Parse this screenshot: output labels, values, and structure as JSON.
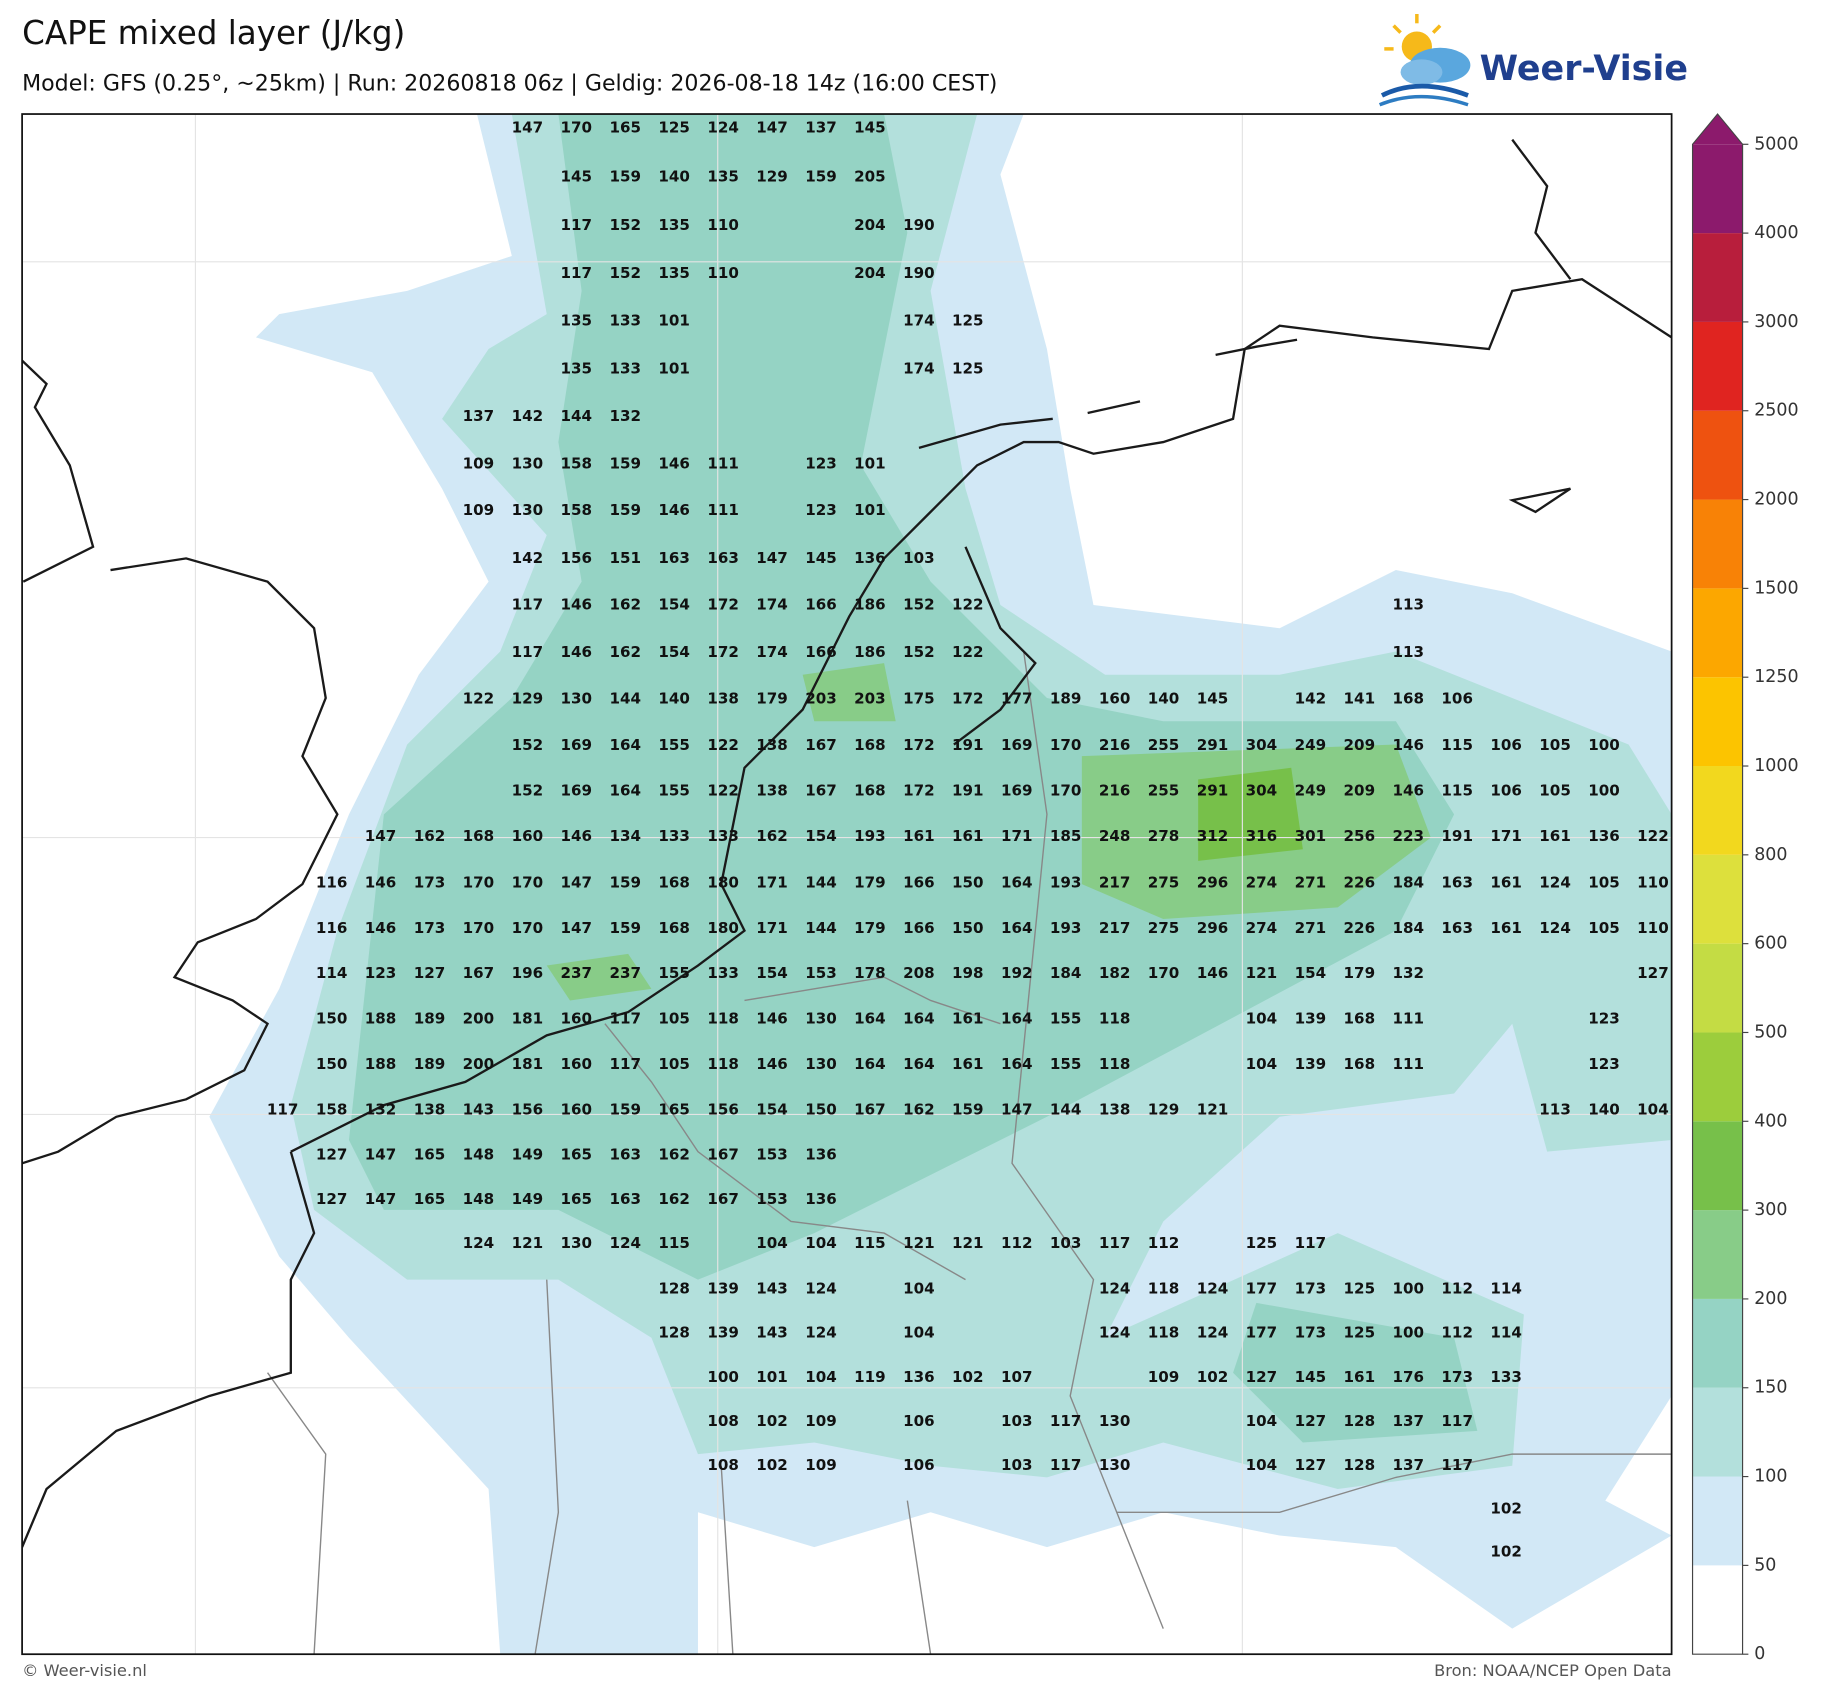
{
  "header": {
    "title": "CAPE mixed layer (J/kg)",
    "subtitle": "Model: GFS (0.25°, ~25km)  |  Run: 20260818 06z  |  Geldig: 2026-08-18 14z (16:00 CEST)",
    "logo": "Weer-Visie"
  },
  "colorbar": {
    "ticks": [
      0,
      50,
      100,
      150,
      200,
      300,
      400,
      500,
      600,
      800,
      1000,
      1250,
      1500,
      2000,
      2500,
      3000,
      4000,
      5000
    ],
    "colors": [
      "#ffffff",
      "#d2e8f6",
      "#b3e0dc",
      "#95d3c4",
      "#88cc88",
      "#77c04a",
      "#9ccd3c",
      "#c4dc44",
      "#dde03c",
      "#f2d81e",
      "#fcc400",
      "#fca700",
      "#f88206",
      "#ee5210",
      "#e02420",
      "#b81e3c",
      "#8c1a6c"
    ],
    "over_color": "#8c1a6c"
  },
  "grid": {
    "rows": [
      [
        null,
        null,
        null,
        null,
        null,
        147,
        170,
        165,
        125,
        124,
        147,
        137,
        145,
        null,
        null,
        null,
        null,
        null,
        null,
        null,
        null,
        null,
        null,
        null,
        null,
        null,
        null,
        null,
        null
      ],
      [
        null,
        null,
        null,
        null,
        null,
        null,
        145,
        159,
        140,
        135,
        129,
        159,
        205,
        null,
        null,
        null,
        null,
        null,
        null,
        null,
        null,
        null,
        null,
        null,
        null,
        null,
        null,
        null,
        null
      ],
      [
        null,
        null,
        null,
        null,
        null,
        null,
        117,
        152,
        135,
        110,
        null,
        null,
        204,
        190,
        null,
        null,
        null,
        null,
        null,
        null,
        null,
        null,
        null,
        null,
        null,
        null,
        null,
        null,
        null
      ],
      [
        null,
        null,
        null,
        null,
        null,
        null,
        117,
        152,
        135,
        110,
        null,
        null,
        204,
        190,
        null,
        null,
        null,
        null,
        null,
        null,
        null,
        null,
        null,
        null,
        null,
        null,
        null,
        null,
        null
      ],
      [
        null,
        null,
        null,
        null,
        null,
        null,
        135,
        133,
        101,
        null,
        null,
        null,
        null,
        174,
        125,
        null,
        null,
        null,
        null,
        null,
        null,
        null,
        null,
        null,
        null,
        null,
        null,
        null,
        null
      ],
      [
        null,
        null,
        null,
        null,
        null,
        null,
        135,
        133,
        101,
        null,
        null,
        null,
        null,
        174,
        125,
        null,
        null,
        null,
        null,
        null,
        null,
        null,
        null,
        null,
        null,
        null,
        null,
        null,
        null
      ],
      [
        null,
        null,
        null,
        null,
        137,
        142,
        144,
        132,
        null,
        null,
        null,
        null,
        null,
        null,
        null,
        null,
        null,
        null,
        null,
        null,
        null,
        null,
        null,
        null,
        null,
        null,
        null,
        null,
        null
      ],
      [
        null,
        null,
        null,
        null,
        109,
        130,
        158,
        159,
        146,
        111,
        null,
        123,
        101,
        null,
        null,
        null,
        null,
        null,
        null,
        null,
        null,
        null,
        null,
        null,
        null,
        null,
        null,
        null,
        null
      ],
      [
        null,
        null,
        null,
        null,
        109,
        130,
        158,
        159,
        146,
        111,
        null,
        123,
        101,
        null,
        null,
        null,
        null,
        null,
        null,
        null,
        null,
        null,
        null,
        null,
        null,
        null,
        null,
        null,
        null
      ],
      [
        null,
        null,
        null,
        null,
        null,
        142,
        156,
        151,
        163,
        163,
        147,
        145,
        136,
        103,
        null,
        null,
        null,
        null,
        null,
        null,
        null,
        null,
        null,
        null,
        null,
        null,
        null,
        null,
        null
      ],
      [
        null,
        null,
        null,
        null,
        null,
        117,
        146,
        162,
        154,
        172,
        174,
        166,
        186,
        152,
        122,
        null,
        null,
        null,
        null,
        null,
        null,
        null,
        null,
        113,
        null,
        null,
        null,
        null,
        null
      ],
      [
        null,
        null,
        null,
        null,
        null,
        117,
        146,
        162,
        154,
        172,
        174,
        166,
        186,
        152,
        122,
        null,
        null,
        null,
        null,
        null,
        null,
        null,
        null,
        113,
        null,
        null,
        null,
        null,
        null
      ],
      [
        null,
        null,
        null,
        null,
        122,
        129,
        130,
        144,
        140,
        138,
        179,
        203,
        203,
        175,
        172,
        177,
        189,
        160,
        140,
        145,
        null,
        142,
        141,
        168,
        106,
        null,
        null,
        null,
        null
      ],
      [
        null,
        null,
        null,
        null,
        null,
        152,
        169,
        164,
        155,
        122,
        138,
        167,
        168,
        172,
        191,
        169,
        170,
        216,
        255,
        291,
        304,
        249,
        209,
        146,
        115,
        106,
        105,
        100,
        null
      ],
      [
        null,
        null,
        null,
        null,
        null,
        152,
        169,
        164,
        155,
        122,
        138,
        167,
        168,
        172,
        191,
        169,
        170,
        216,
        255,
        291,
        304,
        249,
        209,
        146,
        115,
        106,
        105,
        100,
        null
      ],
      [
        null,
        null,
        147,
        162,
        168,
        160,
        146,
        134,
        133,
        133,
        162,
        154,
        193,
        161,
        161,
        171,
        185,
        248,
        278,
        312,
        316,
        301,
        256,
        223,
        191,
        171,
        161,
        136,
        122
      ],
      [
        null,
        116,
        146,
        173,
        170,
        170,
        147,
        159,
        168,
        180,
        171,
        144,
        179,
        166,
        150,
        164,
        193,
        217,
        275,
        296,
        274,
        271,
        226,
        184,
        163,
        161,
        124,
        105,
        110
      ],
      [
        null,
        116,
        146,
        173,
        170,
        170,
        147,
        159,
        168,
        180,
        171,
        144,
        179,
        166,
        150,
        164,
        193,
        217,
        275,
        296,
        274,
        271,
        226,
        184,
        163,
        161,
        124,
        105,
        110
      ],
      [
        null,
        114,
        123,
        127,
        167,
        196,
        237,
        237,
        155,
        133,
        154,
        153,
        178,
        208,
        198,
        192,
        184,
        182,
        170,
        146,
        121,
        154,
        179,
        132,
        null,
        null,
        null,
        null,
        127
      ],
      [
        null,
        150,
        188,
        189,
        200,
        181,
        160,
        117,
        105,
        118,
        146,
        130,
        164,
        164,
        161,
        164,
        155,
        118,
        null,
        null,
        104,
        139,
        168,
        111,
        null,
        null,
        null,
        123,
        null
      ],
      [
        null,
        150,
        188,
        189,
        200,
        181,
        160,
        117,
        105,
        118,
        146,
        130,
        164,
        164,
        161,
        164,
        155,
        118,
        null,
        null,
        104,
        139,
        168,
        111,
        null,
        null,
        null,
        123,
        null
      ],
      [
        117,
        158,
        132,
        138,
        143,
        156,
        160,
        159,
        165,
        156,
        154,
        150,
        167,
        162,
        159,
        147,
        144,
        138,
        129,
        121,
        null,
        null,
        null,
        null,
        null,
        null,
        113,
        140,
        104
      ],
      [
        null,
        127,
        147,
        165,
        148,
        149,
        165,
        163,
        162,
        167,
        153,
        136,
        null,
        null,
        null,
        null,
        null,
        null,
        null,
        null,
        null,
        null,
        null,
        null,
        null,
        null,
        null,
        null,
        null
      ],
      [
        null,
        127,
        147,
        165,
        148,
        149,
        165,
        163,
        162,
        167,
        153,
        136,
        null,
        null,
        null,
        null,
        null,
        null,
        null,
        null,
        null,
        null,
        null,
        null,
        null,
        null,
        null,
        null,
        null
      ],
      [
        null,
        null,
        null,
        null,
        124,
        121,
        130,
        124,
        115,
        null,
        104,
        104,
        115,
        121,
        121,
        112,
        103,
        117,
        112,
        null,
        125,
        117,
        null,
        null,
        null,
        null,
        null,
        null,
        null
      ],
      [
        null,
        null,
        null,
        null,
        null,
        null,
        null,
        null,
        128,
        139,
        143,
        124,
        null,
        104,
        null,
        null,
        null,
        124,
        118,
        124,
        177,
        173,
        125,
        100,
        112,
        114,
        null,
        null,
        null
      ],
      [
        null,
        null,
        null,
        null,
        null,
        null,
        null,
        null,
        128,
        139,
        143,
        124,
        null,
        104,
        null,
        null,
        null,
        124,
        118,
        124,
        177,
        173,
        125,
        100,
        112,
        114,
        null,
        null,
        null
      ],
      [
        null,
        null,
        null,
        null,
        null,
        null,
        null,
        null,
        null,
        100,
        101,
        104,
        119,
        136,
        102,
        107,
        null,
        null,
        109,
        102,
        127,
        145,
        161,
        176,
        173,
        133,
        null,
        null,
        null
      ],
      [
        null,
        null,
        null,
        null,
        null,
        null,
        null,
        null,
        null,
        108,
        102,
        109,
        null,
        106,
        null,
        103,
        117,
        130,
        null,
        null,
        104,
        127,
        128,
        137,
        117,
        null,
        null,
        null,
        null
      ],
      [
        null,
        null,
        null,
        null,
        null,
        null,
        null,
        null,
        null,
        108,
        102,
        109,
        null,
        106,
        null,
        103,
        117,
        130,
        null,
        null,
        104,
        127,
        128,
        137,
        117,
        null,
        null,
        null,
        null
      ],
      [
        null,
        null,
        null,
        null,
        null,
        null,
        null,
        null,
        null,
        null,
        null,
        null,
        null,
        null,
        null,
        null,
        null,
        null,
        null,
        null,
        null,
        null,
        null,
        null,
        null,
        102,
        null,
        null,
        null
      ],
      [
        null,
        null,
        null,
        null,
        null,
        null,
        null,
        null,
        null,
        null,
        null,
        null,
        null,
        null,
        null,
        null,
        null,
        null,
        null,
        null,
        null,
        null,
        null,
        null,
        null,
        102,
        null,
        null,
        null
      ]
    ]
  },
  "footer": {
    "left": "© Weer-visie.nl",
    "right": "Bron: NOAA/NCEP Open Data"
  }
}
